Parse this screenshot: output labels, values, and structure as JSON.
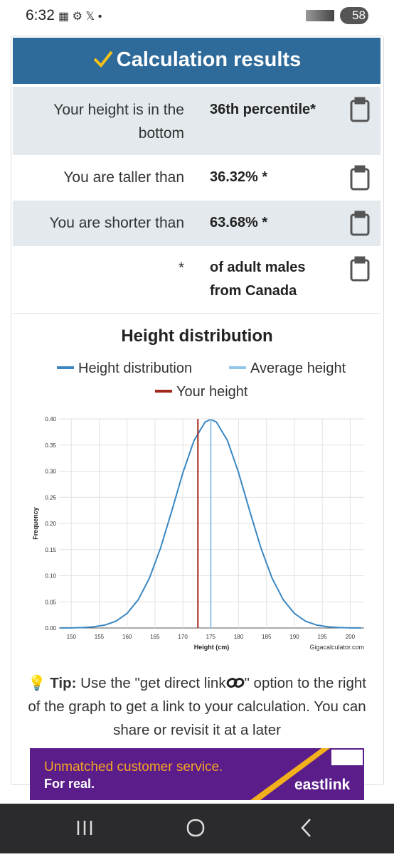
{
  "status_bar": {
    "time": "6:32",
    "battery": "58"
  },
  "results": {
    "title": "Calculation results",
    "rows": [
      {
        "label": "Your height is in the bottom",
        "value": "36th percentile*"
      },
      {
        "label": "You are taller than",
        "value": "36.32% *"
      },
      {
        "label": "You are shorter than",
        "value": "63.68% *"
      },
      {
        "label": "*",
        "value": "of adult males from Canada"
      }
    ]
  },
  "chart": {
    "type": "line",
    "title": "Height distribution",
    "xlabel": "Height (cm)",
    "ylabel": "Frequency",
    "credit": "Gigacalculator.com",
    "series": [
      {
        "name": "Height distribution",
        "color": "#3a87c2",
        "x": [
          148,
          150,
          152,
          154,
          156,
          158,
          160,
          162,
          164,
          166,
          168,
          170,
          172,
          174,
          175,
          176,
          178,
          180,
          182,
          184,
          186,
          188,
          190,
          192,
          194,
          196,
          198,
          200,
          202
        ],
        "values": [
          0.0001,
          0.0002,
          0.0008,
          0.0022,
          0.0056,
          0.013,
          0.0278,
          0.054,
          0.0953,
          0.1529,
          0.2234,
          0.2967,
          0.3586,
          0.3942,
          0.3989,
          0.3942,
          0.3586,
          0.2967,
          0.2234,
          0.1529,
          0.0953,
          0.054,
          0.0278,
          0.013,
          0.0056,
          0.0022,
          0.0008,
          0.0002,
          0.0001
        ]
      },
      {
        "name": "Average height",
        "color": "#92c5ea",
        "x": 175
      },
      {
        "name": "Your height",
        "color": "#a3281c",
        "x": 172.7
      }
    ],
    "xlim": [
      147.8,
      202.5
    ],
    "ylim": [
      0,
      0.4
    ],
    "xticks": [
      150,
      155,
      160,
      165,
      170,
      175,
      180,
      185,
      190,
      195,
      200
    ],
    "yticks": [
      {
        "value": 0,
        "label": "0.00"
      },
      {
        "value": 0.05,
        "label": "0.05"
      },
      {
        "value": 0.1,
        "label": "0.10"
      },
      {
        "value": 0.15,
        "label": "0.15"
      },
      {
        "value": 0.2,
        "label": "0.20"
      },
      {
        "value": 0.25,
        "label": "0.25"
      },
      {
        "value": 0.3,
        "label": "0.30"
      },
      {
        "value": 0.35,
        "label": "0.35"
      },
      {
        "value": 0.4,
        "label": "0.40"
      }
    ],
    "grid": true
  },
  "tip": {
    "label": "Tip:",
    "text_before": "Use the \"get direct link",
    "text_after": "\" option to the right of the graph to get a link to your calculation. You can share or revisit it at a later"
  },
  "ad": {
    "line1": "Unmatched customer service.",
    "line2": "For real.",
    "brand": "eastlink"
  }
}
